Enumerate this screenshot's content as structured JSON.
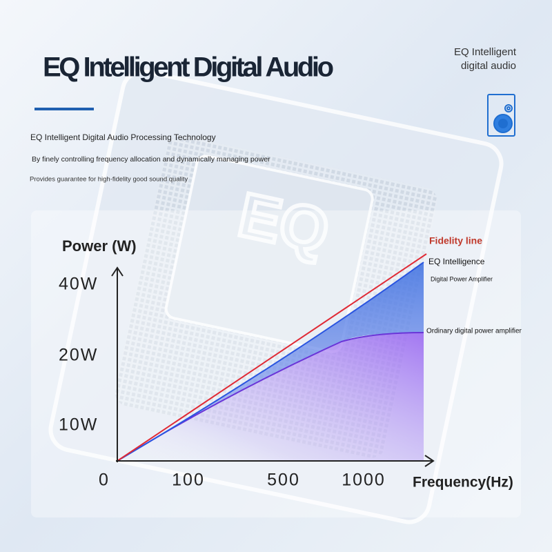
{
  "header": {
    "title": "EQ Intelligent Digital Audio",
    "description": [
      "EQ Intelligent Digital Audio Processing Technology",
      "By finely controlling frequency allocation and dynamically managing power",
      "Provides guarantee for high-fidelity good sound quality"
    ],
    "badge": [
      "EQ Intelligent",
      "digital audio"
    ]
  },
  "illustration": {
    "chip_label": "EQ"
  },
  "diagram": {
    "y_axis_label": "Power (W)",
    "y_ticks": [
      "40W",
      "20W",
      "10W"
    ],
    "x_ticks": [
      "0",
      "100",
      "500",
      "1000"
    ],
    "x_axis_label": "Frequency(Hz)",
    "curves": {
      "fidelity": "Fidelity line",
      "eq": [
        "EQ Intelligence",
        "Digital Power Amplifier"
      ],
      "ordinary": "Ordinary digital power amplifier"
    }
  }
}
